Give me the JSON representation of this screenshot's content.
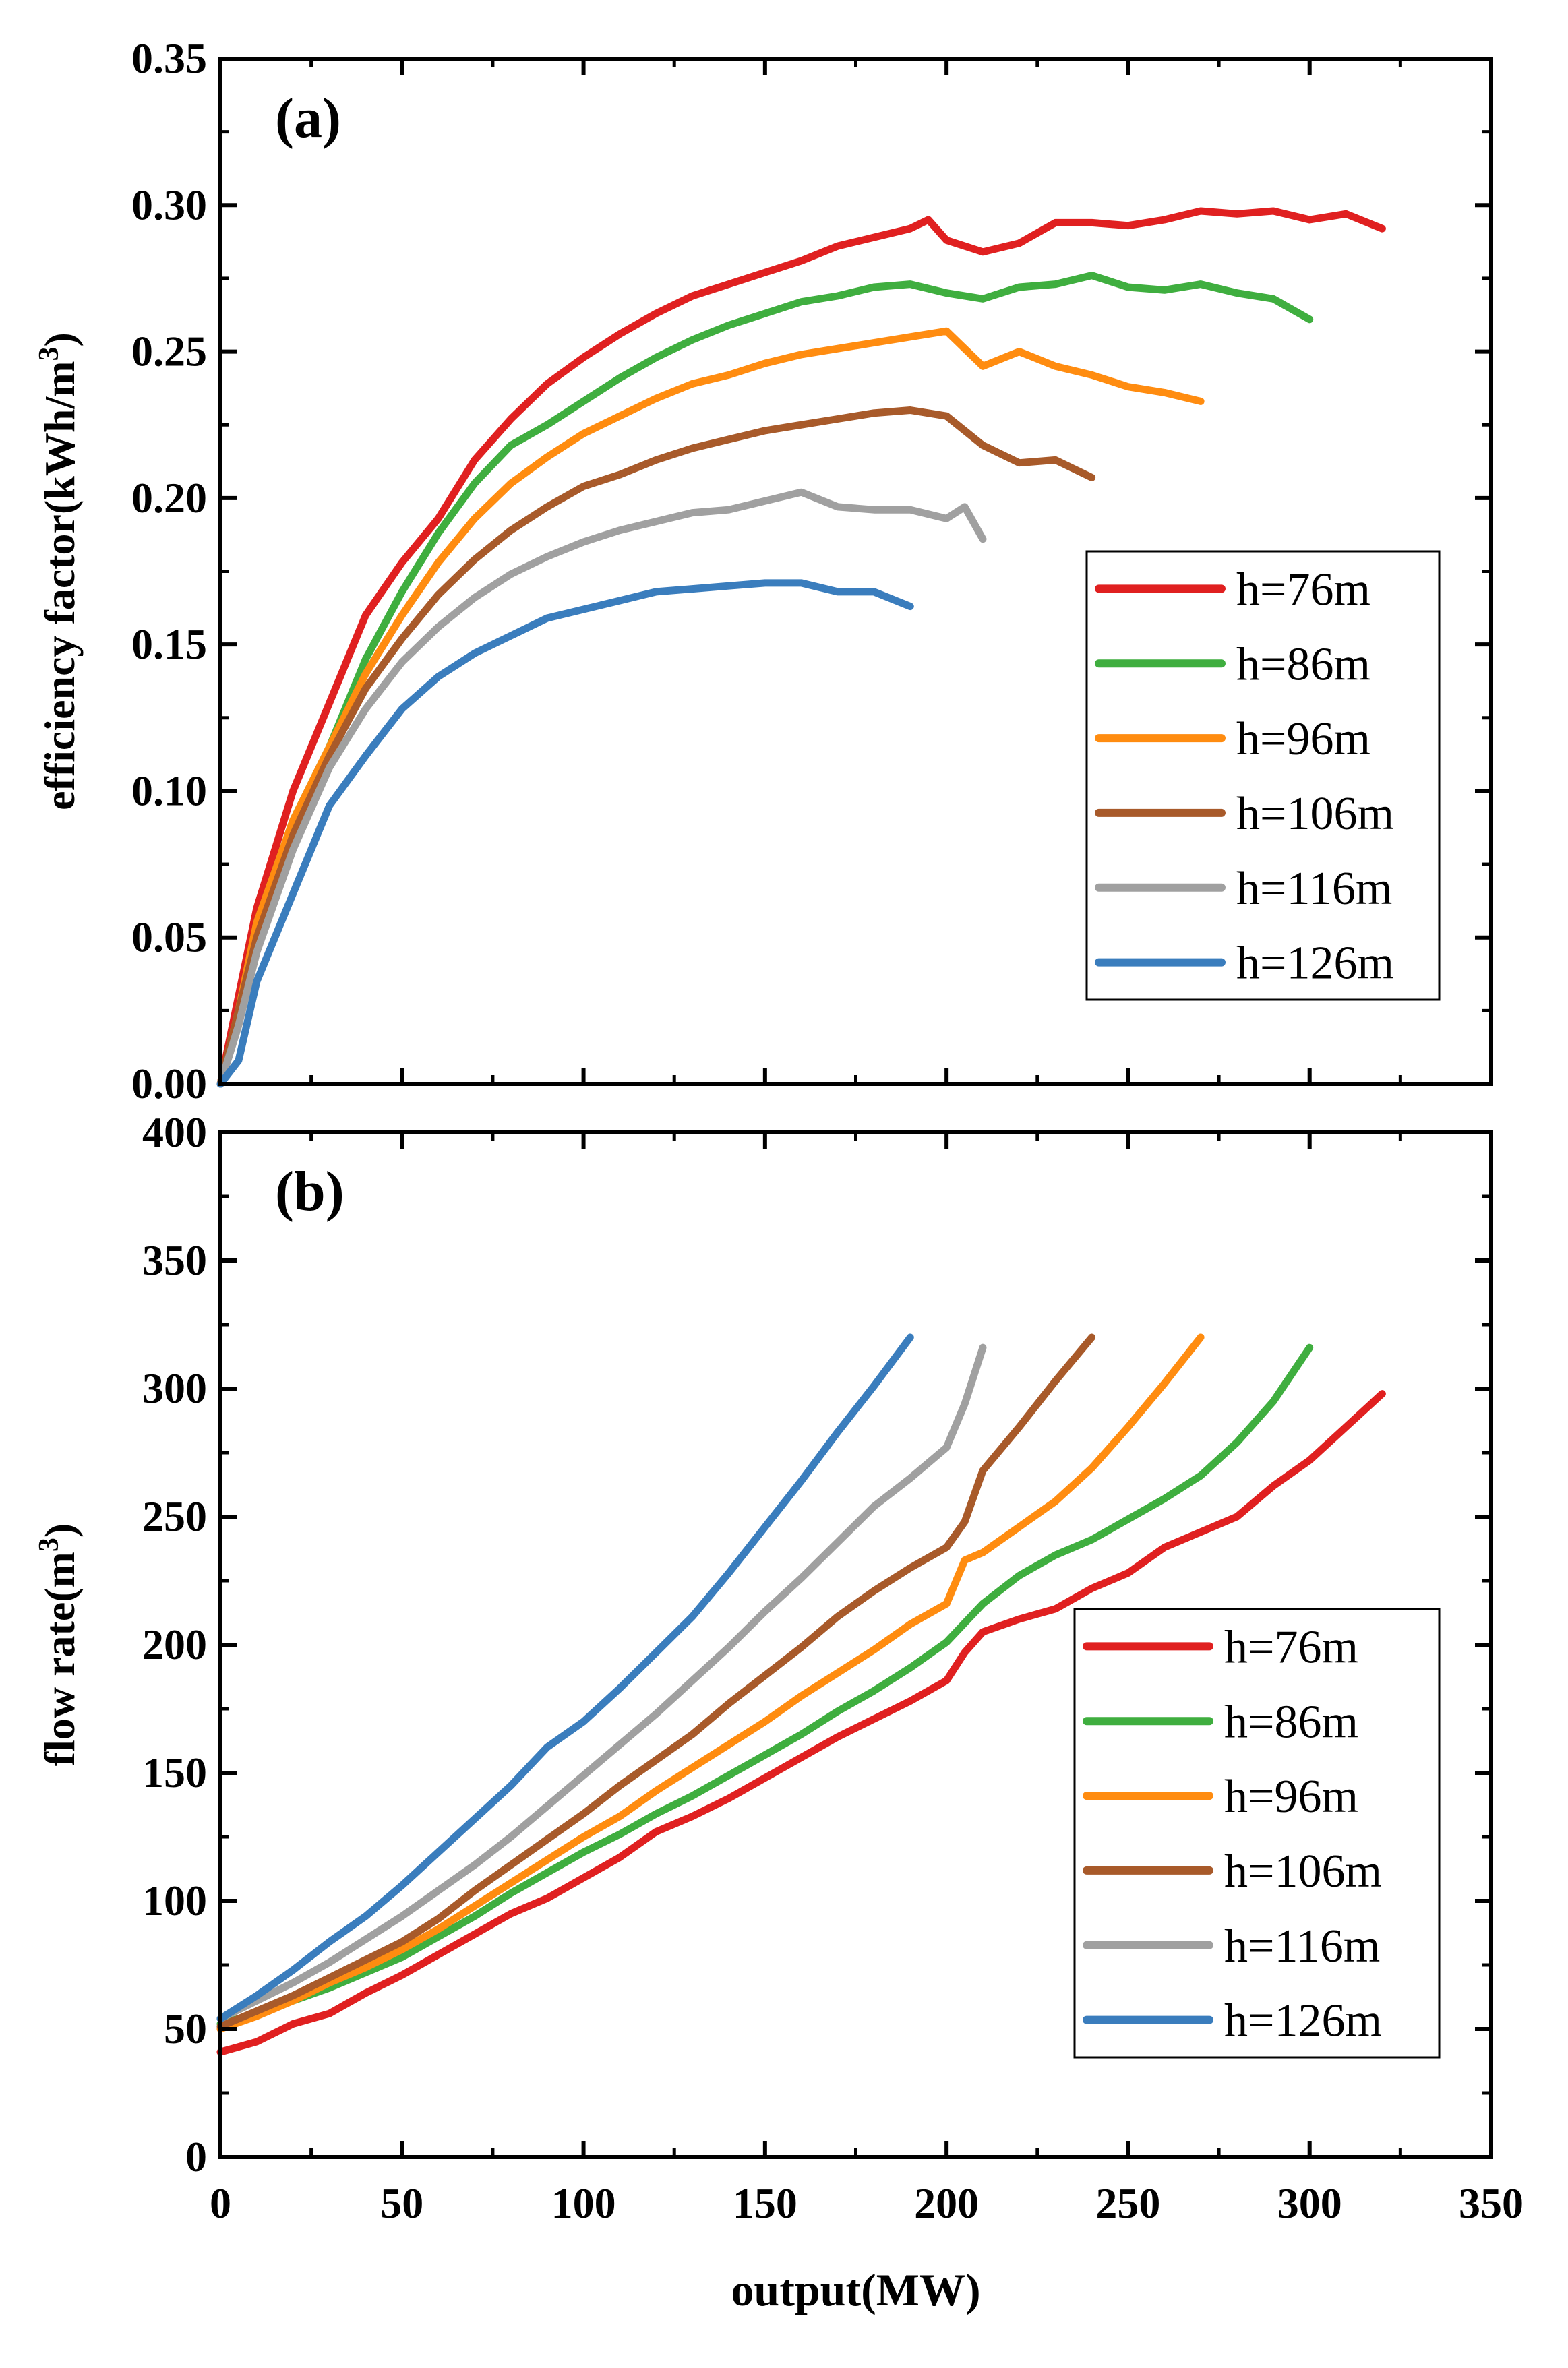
{
  "chart_data": [
    {
      "type": "line",
      "panel_label": "(a)",
      "ylabel": "efficiency factor(kWh/m",
      "ylabel_sup": "3",
      "ylabel_close": ")",
      "xlim": [
        0,
        350
      ],
      "ylim": [
        0,
        0.35
      ],
      "yticks": [
        "0.00",
        "0.05",
        "0.10",
        "0.15",
        "0.20",
        "0.25",
        "0.30",
        "0.35"
      ],
      "legend_position": "right-middle",
      "series": [
        {
          "name": "h=76m",
          "color": "#e02020",
          "x": [
            0,
            5,
            10,
            20,
            30,
            40,
            50,
            60,
            70,
            80,
            90,
            100,
            110,
            120,
            130,
            140,
            150,
            160,
            170,
            180,
            190,
            195,
            200,
            210,
            220,
            230,
            240,
            250,
            260,
            270,
            280,
            290,
            300,
            310,
            320
          ],
          "y": [
            0,
            0.03,
            0.06,
            0.1,
            0.13,
            0.16,
            0.178,
            0.193,
            0.213,
            0.227,
            0.239,
            0.248,
            0.256,
            0.263,
            0.269,
            0.273,
            0.277,
            0.281,
            0.286,
            0.289,
            0.292,
            0.295,
            0.288,
            0.284,
            0.287,
            0.294,
            0.294,
            0.293,
            0.295,
            0.298,
            0.297,
            0.298,
            0.295,
            0.297,
            0.292
          ]
        },
        {
          "name": "h=86m",
          "color": "#3fae3f",
          "x": [
            0,
            5,
            10,
            20,
            30,
            40,
            50,
            60,
            70,
            80,
            90,
            100,
            110,
            120,
            130,
            140,
            150,
            160,
            170,
            180,
            190,
            200,
            210,
            220,
            230,
            240,
            250,
            260,
            270,
            280,
            290,
            300
          ],
          "y": [
            0,
            0.025,
            0.055,
            0.09,
            0.115,
            0.145,
            0.168,
            0.188,
            0.205,
            0.218,
            0.225,
            0.233,
            0.241,
            0.248,
            0.254,
            0.259,
            0.263,
            0.267,
            0.269,
            0.272,
            0.273,
            0.27,
            0.268,
            0.272,
            0.273,
            0.276,
            0.272,
            0.271,
            0.273,
            0.27,
            0.268,
            0.261
          ]
        },
        {
          "name": "h=96m",
          "color": "#ff8c10",
          "x": [
            0,
            5,
            10,
            20,
            30,
            40,
            50,
            60,
            70,
            80,
            90,
            100,
            110,
            120,
            130,
            140,
            150,
            160,
            170,
            180,
            190,
            200,
            210,
            220,
            230,
            240,
            250,
            260,
            270
          ],
          "y": [
            0,
            0.025,
            0.055,
            0.09,
            0.115,
            0.14,
            0.16,
            0.178,
            0.193,
            0.205,
            0.214,
            0.222,
            0.228,
            0.234,
            0.239,
            0.242,
            0.246,
            0.249,
            0.251,
            0.253,
            0.255,
            0.257,
            0.245,
            0.25,
            0.245,
            0.242,
            0.238,
            0.236,
            0.233
          ]
        },
        {
          "name": "h=106m",
          "color": "#a85a2a",
          "x": [
            0,
            5,
            10,
            20,
            30,
            40,
            50,
            60,
            70,
            80,
            90,
            100,
            110,
            120,
            130,
            140,
            150,
            160,
            170,
            180,
            190,
            200,
            210,
            220,
            230,
            240
          ],
          "y": [
            0,
            0.025,
            0.05,
            0.085,
            0.112,
            0.135,
            0.152,
            0.167,
            0.179,
            0.189,
            0.197,
            0.204,
            0.208,
            0.213,
            0.217,
            0.22,
            0.223,
            0.225,
            0.227,
            0.229,
            0.23,
            0.228,
            0.218,
            0.212,
            0.213,
            0.207
          ]
        },
        {
          "name": "h=116m",
          "color": "#a0a0a0",
          "x": [
            0,
            5,
            10,
            20,
            30,
            40,
            50,
            60,
            70,
            80,
            90,
            100,
            110,
            120,
            130,
            140,
            150,
            160,
            170,
            180,
            190,
            200,
            205,
            210
          ],
          "y": [
            0,
            0.02,
            0.045,
            0.08,
            0.108,
            0.128,
            0.144,
            0.156,
            0.166,
            0.174,
            0.18,
            0.185,
            0.189,
            0.192,
            0.195,
            0.196,
            0.199,
            0.202,
            0.197,
            0.196,
            0.196,
            0.193,
            0.197,
            0.186
          ]
        },
        {
          "name": "h=126m",
          "color": "#3a7dbd",
          "x": [
            0,
            5,
            10,
            20,
            30,
            40,
            50,
            60,
            70,
            80,
            90,
            100,
            110,
            120,
            130,
            140,
            150,
            160,
            170,
            180,
            190
          ],
          "y": [
            0,
            0.008,
            0.035,
            0.065,
            0.095,
            0.112,
            0.128,
            0.139,
            0.147,
            0.153,
            0.159,
            0.162,
            0.165,
            0.168,
            0.169,
            0.17,
            0.171,
            0.171,
            0.168,
            0.168,
            0.163
          ]
        }
      ]
    },
    {
      "type": "line",
      "panel_label": "(b)",
      "ylabel": "flow rate(m",
      "ylabel_sup": "3",
      "ylabel_close": ")",
      "xlabel": "output(MW)",
      "xlim": [
        0,
        350
      ],
      "ylim": [
        0,
        400
      ],
      "xticks": [
        "0",
        "50",
        "100",
        "150",
        "200",
        "250",
        "300",
        "350"
      ],
      "yticks": [
        "0",
        "50",
        "100",
        "150",
        "200",
        "250",
        "300",
        "350",
        "400"
      ],
      "legend_position": "right-middle",
      "series": [
        {
          "name": "h=76m",
          "color": "#e02020",
          "x": [
            0,
            10,
            20,
            30,
            40,
            50,
            60,
            70,
            80,
            90,
            100,
            110,
            120,
            130,
            140,
            150,
            160,
            170,
            180,
            190,
            200,
            205,
            210,
            220,
            230,
            240,
            250,
            260,
            270,
            280,
            290,
            300,
            310,
            320
          ],
          "y": [
            41,
            45,
            52,
            56,
            64,
            71,
            79,
            87,
            95,
            101,
            109,
            117,
            127,
            133,
            140,
            148,
            156,
            164,
            171,
            178,
            186,
            197,
            205,
            210,
            214,
            222,
            228,
            238,
            244,
            250,
            262,
            272,
            285,
            298
          ]
        },
        {
          "name": "h=86m",
          "color": "#3fae3f",
          "x": [
            0,
            10,
            20,
            30,
            40,
            50,
            60,
            70,
            80,
            90,
            100,
            110,
            120,
            130,
            140,
            150,
            160,
            170,
            180,
            190,
            200,
            210,
            220,
            230,
            240,
            250,
            260,
            270,
            280,
            290,
            300
          ],
          "y": [
            52,
            56,
            61,
            66,
            72,
            78,
            86,
            94,
            103,
            111,
            119,
            126,
            134,
            141,
            149,
            157,
            165,
            174,
            182,
            191,
            201,
            216,
            227,
            235,
            241,
            249,
            257,
            266,
            279,
            295,
            316
          ]
        },
        {
          "name": "h=96m",
          "color": "#ff8c10",
          "x": [
            0,
            10,
            20,
            30,
            40,
            50,
            60,
            70,
            80,
            90,
            100,
            110,
            120,
            130,
            140,
            150,
            160,
            170,
            180,
            190,
            200,
            205,
            210,
            220,
            230,
            240,
            250,
            260,
            270
          ],
          "y": [
            50,
            55,
            61,
            68,
            74,
            81,
            89,
            98,
            107,
            116,
            125,
            133,
            143,
            152,
            161,
            170,
            180,
            189,
            198,
            208,
            216,
            233,
            236,
            246,
            256,
            269,
            285,
            302,
            320
          ]
        },
        {
          "name": "h=106m",
          "color": "#a85a2a",
          "x": [
            0,
            10,
            20,
            30,
            40,
            50,
            60,
            70,
            80,
            90,
            100,
            110,
            120,
            130,
            140,
            150,
            160,
            170,
            180,
            190,
            200,
            205,
            210,
            220,
            230,
            240
          ],
          "y": [
            51,
            57,
            63,
            70,
            77,
            84,
            93,
            104,
            114,
            124,
            134,
            145,
            155,
            165,
            177,
            188,
            199,
            211,
            221,
            230,
            238,
            248,
            268,
            285,
            303,
            320
          ]
        },
        {
          "name": "h=116m",
          "color": "#a0a0a0",
          "x": [
            0,
            10,
            20,
            30,
            40,
            50,
            60,
            70,
            80,
            90,
            100,
            110,
            120,
            130,
            140,
            150,
            160,
            170,
            180,
            190,
            200,
            205,
            210
          ],
          "y": [
            54,
            61,
            68,
            76,
            85,
            94,
            104,
            114,
            125,
            137,
            149,
            161,
            173,
            186,
            199,
            213,
            226,
            240,
            254,
            265,
            277,
            294,
            316
          ]
        },
        {
          "name": "h=126m",
          "color": "#3a7dbd",
          "x": [
            0,
            10,
            20,
            30,
            40,
            50,
            60,
            70,
            80,
            90,
            100,
            110,
            120,
            130,
            140,
            150,
            160,
            170,
            180,
            190
          ],
          "y": [
            54,
            63,
            73,
            84,
            94,
            106,
            119,
            132,
            145,
            160,
            170,
            183,
            197,
            211,
            228,
            246,
            264,
            283,
            301,
            320
          ]
        }
      ]
    }
  ]
}
